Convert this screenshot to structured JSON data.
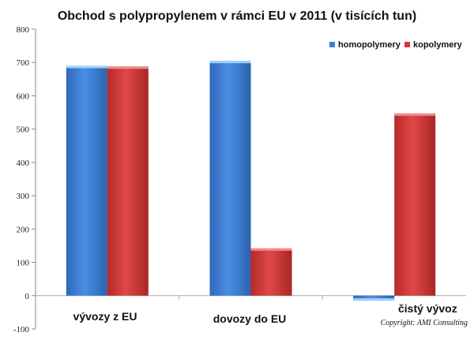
{
  "chart_data": {
    "type": "bar",
    "title": "Obchod s polypropylenem v rámci EU v 2011 (v tisících tun)",
    "categories": [
      "vývozy z EU",
      "dovozy do EU",
      "čistý vývoz"
    ],
    "series": [
      {
        "name": "homopolymery",
        "values": [
          690,
          705,
          -15
        ]
      },
      {
        "name": "kopolymery",
        "values": [
          688,
          142,
          547
        ]
      }
    ],
    "ylim": [
      -100,
      800
    ],
    "yticks": [
      -100,
      0,
      100,
      200,
      300,
      400,
      500,
      600,
      700,
      800
    ],
    "grid": false,
    "legend": "top-right",
    "colors": {
      "homopolymery": "#3a7fd4",
      "kopolymery": "#d23a3a"
    },
    "copyright": "Copyright: AMI Consulting"
  }
}
